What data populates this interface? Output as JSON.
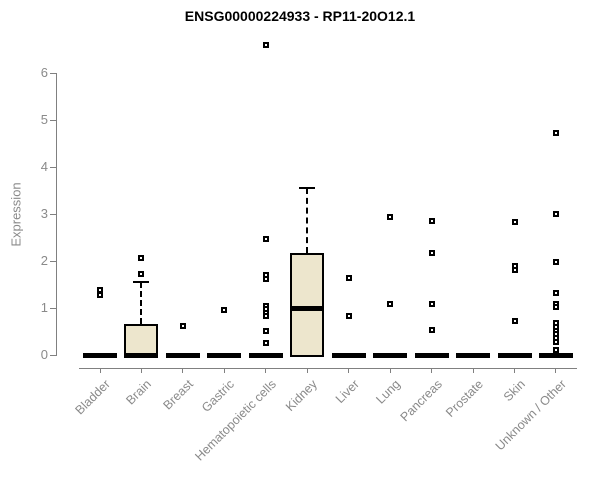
{
  "chart_data": {
    "type": "boxplot",
    "title": "ENSG00000224933 - RP11-20O12.1",
    "ylabel": "Expression",
    "xlabel": "",
    "ylim": [
      0,
      6
    ],
    "yticks": [
      0,
      1,
      2,
      3,
      4,
      5,
      6
    ],
    "grid": false,
    "legend": "none",
    "categories": [
      "Bladder",
      "Brain",
      "Breast",
      "Gastric",
      "Hematopoietic cells",
      "Kidney",
      "Liver",
      "Lung",
      "Pancreas",
      "Prostate",
      "Skin",
      "Unknown / Other"
    ],
    "series": [
      {
        "category": "Bladder",
        "q1": 0,
        "median": 0,
        "q3": 0,
        "whisker_low": 0,
        "whisker_high": 0,
        "outliers": [
          1.39,
          1.28
        ]
      },
      {
        "category": "Brain",
        "q1": 0,
        "median": 0,
        "q3": 0.65,
        "whisker_low": 0,
        "whisker_high": 1.55,
        "outliers": [
          2.07,
          1.73
        ]
      },
      {
        "category": "Breast",
        "q1": 0,
        "median": 0,
        "q3": 0,
        "whisker_low": 0,
        "whisker_high": 0,
        "outliers": [
          0.61
        ]
      },
      {
        "category": "Gastric",
        "q1": 0,
        "median": 0,
        "q3": 0,
        "whisker_low": 0,
        "whisker_high": 0,
        "outliers": [
          0.96
        ]
      },
      {
        "category": "Hematopoietic cells",
        "q1": 0,
        "median": 0,
        "q3": 0,
        "whisker_low": 0,
        "whisker_high": 0,
        "outliers": [
          6.6,
          2.46,
          1.71,
          1.62,
          1.05,
          0.98,
          0.9,
          0.82,
          0.52,
          0.26
        ]
      },
      {
        "category": "Kidney",
        "q1": 0,
        "median": 0.98,
        "q3": 2.17,
        "whisker_low": 0,
        "whisker_high": 3.55,
        "outliers": []
      },
      {
        "category": "Liver",
        "q1": 0,
        "median": 0,
        "q3": 0,
        "whisker_low": 0,
        "whisker_high": 0,
        "outliers": [
          1.63,
          0.82
        ]
      },
      {
        "category": "Lung",
        "q1": 0,
        "median": 0,
        "q3": 0,
        "whisker_low": 0,
        "whisker_high": 0,
        "outliers": [
          2.93,
          1.09
        ]
      },
      {
        "category": "Pancreas",
        "q1": 0,
        "median": 0,
        "q3": 0,
        "whisker_low": 0,
        "whisker_high": 0,
        "outliers": [
          2.85,
          2.17,
          1.09,
          0.54
        ]
      },
      {
        "category": "Prostate",
        "q1": 0,
        "median": 0,
        "q3": 0,
        "whisker_low": 0,
        "whisker_high": 0,
        "outliers": []
      },
      {
        "category": "Skin",
        "q1": 0,
        "median": 0,
        "q3": 0,
        "whisker_low": 0,
        "whisker_high": 0,
        "outliers": [
          2.83,
          1.9,
          1.8,
          0.73
        ]
      },
      {
        "category": "Unknown / Other",
        "q1": 0,
        "median": 0,
        "q3": 0,
        "whisker_low": 0,
        "whisker_high": 0,
        "outliers": [
          4.72,
          3.0,
          1.97,
          1.31,
          1.08,
          1.02,
          0.68,
          0.6,
          0.52,
          0.45,
          0.36,
          0.28,
          0.11
        ]
      }
    ],
    "colors": {
      "box_fill": "#ede6cd",
      "box_border": "#000000",
      "outlier": "#000000",
      "axis": "#808080",
      "axis_text": "#8a8a8a",
      "title_text": "#000000",
      "background": "#ffffff"
    }
  }
}
